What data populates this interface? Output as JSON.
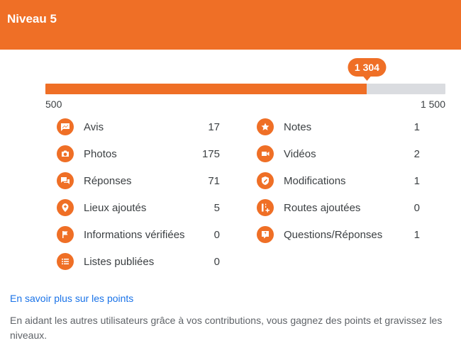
{
  "header": {
    "title": "Niveau 5",
    "color": "#ef6f26"
  },
  "progress": {
    "current_label": "1 304",
    "current": 1304,
    "min": 500,
    "max": 1500,
    "min_label": "500",
    "max_label": "1 500"
  },
  "stats_left": [
    {
      "icon": "review-icon",
      "label": "Avis",
      "value": "17"
    },
    {
      "icon": "camera-icon",
      "label": "Photos",
      "value": "175"
    },
    {
      "icon": "answers-icon",
      "label": "Réponses",
      "value": "71"
    },
    {
      "icon": "place-add-icon",
      "label": "Lieux ajoutés",
      "value": "5"
    },
    {
      "icon": "flag-icon",
      "label": "Informations vérifiées",
      "value": "0"
    },
    {
      "icon": "list-icon",
      "label": "Listes publiées",
      "value": "0"
    }
  ],
  "stats_right": [
    {
      "icon": "star-icon",
      "label": "Notes",
      "value": "1"
    },
    {
      "icon": "video-icon",
      "label": "Vidéos",
      "value": "2"
    },
    {
      "icon": "edit-shield-icon",
      "label": "Modifications",
      "value": "1"
    },
    {
      "icon": "road-add-icon",
      "label": "Routes ajoutées",
      "value": "0"
    },
    {
      "icon": "qa-icon",
      "label": "Questions/Réponses",
      "value": "1"
    }
  ],
  "footer": {
    "link": "En savoir plus sur les points",
    "description": "En aidant les autres utilisateurs grâce à vos contributions, vous gagnez des points et gravissez les niveaux."
  }
}
